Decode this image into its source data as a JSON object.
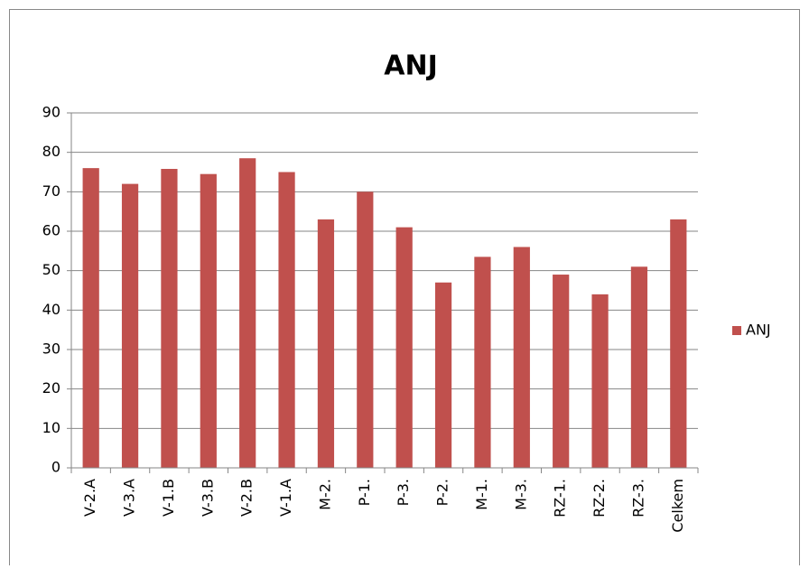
{
  "chart_data": {
    "type": "bar",
    "title": "ANJ",
    "categories": [
      "V-2.A",
      "V-3.A",
      "V-1.B",
      "V-3.B",
      "V-2.B",
      "V-1.A",
      "M-2.",
      "P-1.",
      "P-3.",
      "P-2.",
      "M-1.",
      "M-3.",
      "RZ-1.",
      "RZ-2.",
      "RZ-3.",
      "Celkem"
    ],
    "series": [
      {
        "name": "ANJ",
        "color": "#c0504d",
        "values": [
          76,
          72,
          75.8,
          74.5,
          78.5,
          75,
          63,
          70,
          61,
          47,
          53.5,
          56,
          49,
          44,
          51,
          63
        ]
      }
    ],
    "ylim": [
      0,
      90
    ],
    "yticks": [
      0,
      10,
      20,
      30,
      40,
      50,
      60,
      70,
      80,
      90
    ],
    "grid": true,
    "legend": "right"
  }
}
